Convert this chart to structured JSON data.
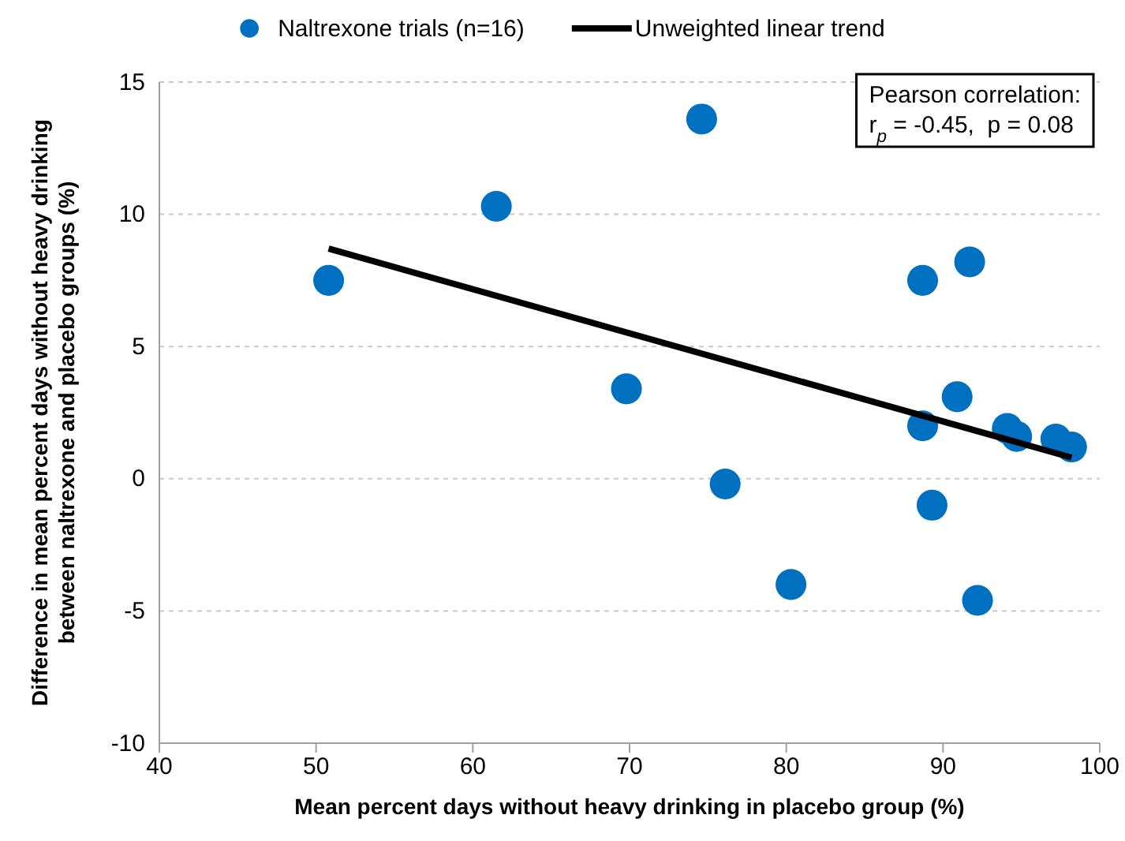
{
  "chart_data": {
    "type": "scatter",
    "xlabel": "Mean percent days without heavy drinking in placebo group (%)",
    "ylabel": "Difference in mean percent days without heavy drinking between naltrexone and placebo groups (%)",
    "xlim": [
      40,
      100
    ],
    "xticks": [
      40,
      50,
      60,
      70,
      80,
      90,
      100
    ],
    "ylim": [
      -10,
      15
    ],
    "yticks": [
      -10,
      -5,
      0,
      5,
      10,
      15
    ],
    "grid": "y",
    "legend": "top",
    "marker": "circle",
    "annotations": [
      "Pearson correlation:",
      "r$_{p}$ = -0.45,  p = 0.08"
    ],
    "series": [
      {
        "name": "Naltrexone trials (n=16)",
        "color": "#0070c0",
        "x": [
          50.8,
          61.5,
          69.8,
          74.6,
          76.1,
          80.3,
          88.7,
          91.7,
          88.7,
          89.3,
          90.9,
          92.2,
          94.1,
          94.7,
          97.2,
          98.2
        ],
        "values": [
          7.5,
          10.3,
          3.4,
          13.6,
          -0.2,
          -4.0,
          7.5,
          8.2,
          2.0,
          -1.0,
          3.1,
          -4.6,
          1.9,
          1.6,
          1.5,
          1.2
        ]
      },
      {
        "name": "Unweighted linear trend",
        "type": "line",
        "color": "#000000",
        "line_style": "solid",
        "marker": "none",
        "x": [
          50.8,
          98.2
        ],
        "values": [
          8.7,
          0.8
        ]
      }
    ]
  }
}
